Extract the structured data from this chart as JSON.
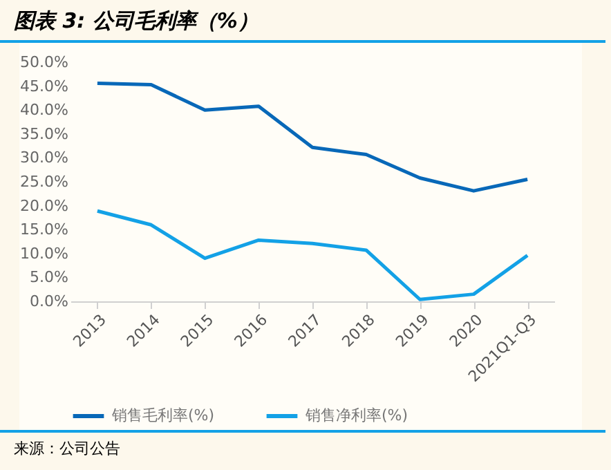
{
  "chart_data": {
    "type": "line",
    "title": "图表 3: 公司毛利率（%）",
    "categories": [
      "2013",
      "2014",
      "2015",
      "2016",
      "2017",
      "2018",
      "2019",
      "2020",
      "2021Q1-Q3"
    ],
    "series": [
      {
        "name": "销售毛利率(%)",
        "color": "#0868b8",
        "values": [
          45.6,
          45.3,
          40.0,
          40.8,
          32.2,
          30.7,
          25.8,
          23.1,
          25.5
        ]
      },
      {
        "name": "销售净利率(%)",
        "color": "#13a1e6",
        "values": [
          18.9,
          16.0,
          9.0,
          12.8,
          12.1,
          10.7,
          0.4,
          1.5,
          9.6
        ]
      }
    ],
    "ylim": [
      0,
      50
    ],
    "yticks": [
      {
        "value": 0,
        "label": "0.0%"
      },
      {
        "value": 5,
        "label": "5.0%"
      },
      {
        "value": 10,
        "label": "10.0%"
      },
      {
        "value": 15,
        "label": "15.0%"
      },
      {
        "value": 20,
        "label": "20.0%"
      },
      {
        "value": 25,
        "label": "25.0%"
      },
      {
        "value": 30,
        "label": "30.0%"
      },
      {
        "value": 35,
        "label": "35.0%"
      },
      {
        "value": 40,
        "label": "40.0%"
      },
      {
        "value": 45,
        "label": "45.0%"
      },
      {
        "value": 50,
        "label": "50.0%"
      }
    ],
    "grid": false,
    "legend": "bottom",
    "marker": "none",
    "line_style": "solid",
    "annotations": [
      "来源：公司公告"
    ]
  }
}
